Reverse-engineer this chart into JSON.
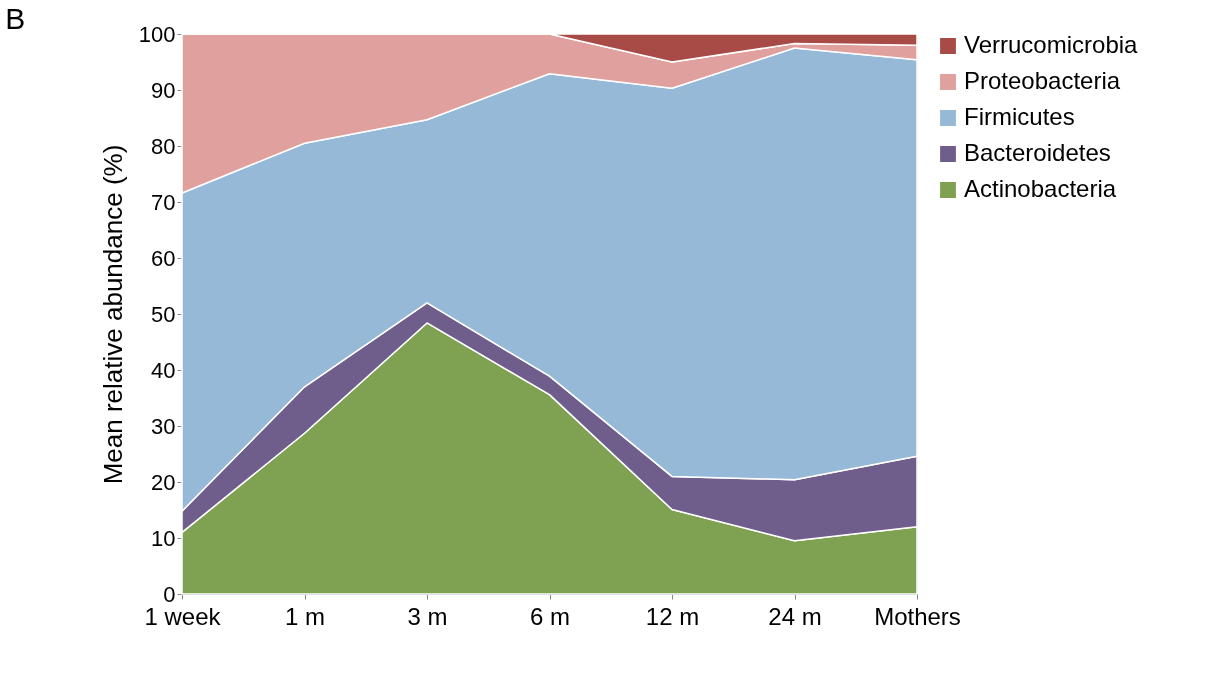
{
  "chart_data": {
    "type": "area",
    "title": "B",
    "ylabel": "Mean relative abundance (%)",
    "stacked": true,
    "categories": [
      "1 week",
      "1 m",
      "3 m",
      "6 m",
      "12 m",
      "24 m",
      "Mothers"
    ],
    "series": [
      {
        "name": "Actinobacteria",
        "color": "#7ea152",
        "values": [
          11,
          28.7,
          48.4,
          35.6,
          15.1,
          9.5,
          12
        ]
      },
      {
        "name": "Bacteroidetes",
        "color": "#6f5e8c",
        "values": [
          3.8,
          8.3,
          3.6,
          3.3,
          5.9,
          10.9,
          12.6
        ]
      },
      {
        "name": "Firmicutes",
        "color": "#97b9d8",
        "values": [
          56.8,
          43.5,
          32.7,
          54,
          69.3,
          77.1,
          70.8
        ]
      },
      {
        "name": "Proteobacteria",
        "color": "#e0a09e",
        "values": [
          28.4,
          19.5,
          15.3,
          7.1,
          4.7,
          0.8,
          2.6
        ]
      },
      {
        "name": "Verrucomicrobia",
        "color": "#a84a45",
        "values": [
          0,
          0,
          0,
          0,
          5,
          1.7,
          2
        ]
      }
    ],
    "ylim": [
      0,
      100
    ],
    "yticks": [
      0,
      10,
      20,
      30,
      40,
      50,
      60,
      70,
      80,
      90,
      100
    ],
    "legend": "right"
  }
}
